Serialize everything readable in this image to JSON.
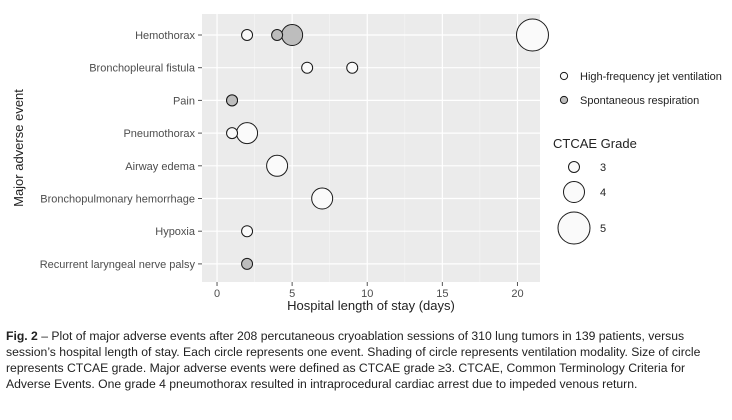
{
  "chart_data": {
    "type": "scatter",
    "xlabel": "Hospital length of stay (days)",
    "ylabel": "Major adverse event",
    "xlim": [
      -1,
      21.5
    ],
    "xticks": [
      0,
      5,
      10,
      15,
      20
    ],
    "grid": true,
    "legend_placement": "right",
    "categories": [
      "Hemothorax",
      "Bronchopleural fistula",
      "Pain",
      "Pneumothorax",
      "Airway edema",
      "Bronchopulmonary hemorrhage",
      "Hypoxia",
      "Recurrent laryngeal nerve palsy"
    ],
    "series": [
      {
        "name": "High-frequency jet ventilation",
        "color": "#fafafa",
        "points": [
          {
            "category": "Hemothorax",
            "x": 2,
            "grade": 3
          },
          {
            "category": "Hemothorax",
            "x": 21,
            "grade": 5
          },
          {
            "category": "Bronchopleural fistula",
            "x": 6,
            "grade": 3
          },
          {
            "category": "Bronchopleural fistula",
            "x": 9,
            "grade": 3
          },
          {
            "category": "Pain",
            "x": 1,
            "grade": 3
          },
          {
            "category": "Pneumothorax",
            "x": 1,
            "grade": 3
          },
          {
            "category": "Pneumothorax",
            "x": 2,
            "grade": 4
          },
          {
            "category": "Airway edema",
            "x": 4,
            "grade": 4
          },
          {
            "category": "Bronchopulmonary hemorrhage",
            "x": 7,
            "grade": 4
          },
          {
            "category": "Hypoxia",
            "x": 2,
            "grade": 3
          }
        ]
      },
      {
        "name": "Spontaneous respiration",
        "color": "#bdbdbd",
        "points": [
          {
            "category": "Hemothorax",
            "x": 4,
            "grade": 3
          },
          {
            "category": "Hemothorax",
            "x": 5,
            "grade": 4
          },
          {
            "category": "Pain",
            "x": 1,
            "grade": 3
          },
          {
            "category": "Recurrent laryngeal nerve palsy",
            "x": 2,
            "grade": 3
          }
        ]
      }
    ],
    "size_legend": {
      "title": "CTCAE Grade",
      "grades": [
        "3",
        "4",
        "5"
      ]
    }
  },
  "caption": {
    "label": "Fig. 2",
    "text": " – Plot of major adverse events after 208 percutaneous cryoablation sessions of 310 lung tumors in 139 patients, versus session’s hospital length of stay. Each circle represents one event. Shading of circle represents ventilation modality. Size of circle represents CTCAE grade. Major adverse events were defined as CTCAE grade ≥3. CTCAE, Common Terminology Criteria for Adverse Events. One grade 4 pneumothorax resulted in intraprocedural cardiac arrest due to impeded venous return."
  }
}
